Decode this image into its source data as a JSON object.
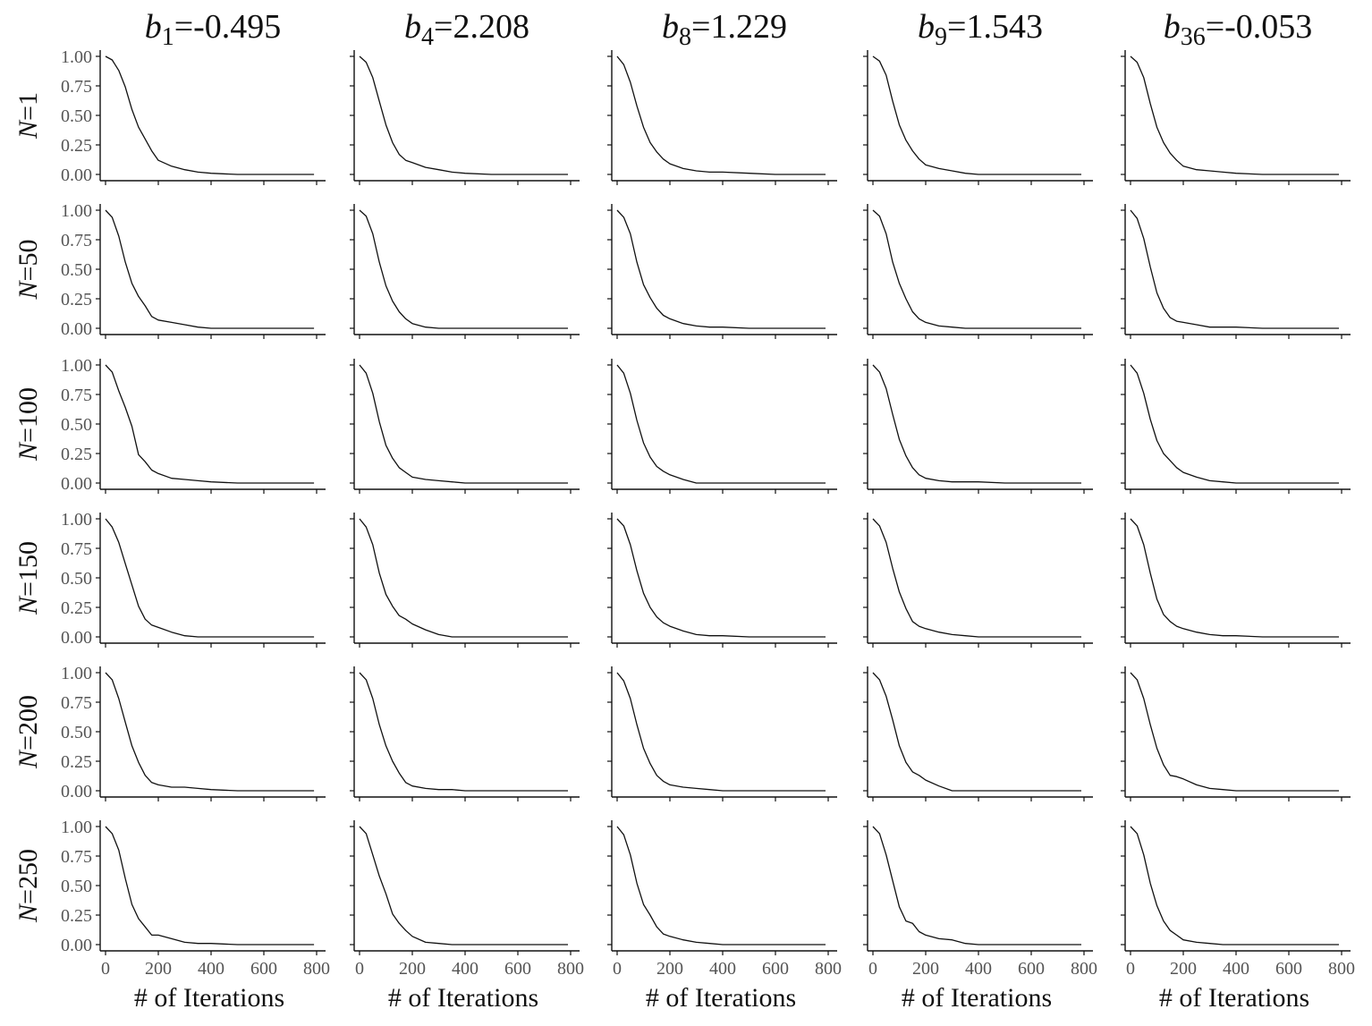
{
  "chart_data": {
    "type": "line",
    "layout": "small-multiples-grid",
    "xlabel": "# of Iterations",
    "xlim": [
      0,
      800
    ],
    "ylim": [
      0,
      1
    ],
    "x_ticks": [
      "0",
      "200",
      "400",
      "600",
      "800"
    ],
    "y_ticks": [
      "0.00",
      "0.25",
      "0.50",
      "0.75",
      "1.00"
    ],
    "x_tick_values": [
      0,
      200,
      400,
      600,
      800
    ],
    "y_tick_values": [
      0,
      0.25,
      0.5,
      0.75,
      1
    ],
    "grid": false,
    "legend": "none",
    "columns": [
      {
        "symbol": "b",
        "subscript": "1",
        "value_text": "=-0.495"
      },
      {
        "symbol": "b",
        "subscript": "4",
        "value_text": "=2.208"
      },
      {
        "symbol": "b",
        "subscript": "8",
        "value_text": "=1.229"
      },
      {
        "symbol": "b",
        "subscript": "9",
        "value_text": "=1.543"
      },
      {
        "symbol": "b",
        "subscript": "36",
        "value_text": "=-0.053"
      }
    ],
    "rows": [
      {
        "symbol": "N",
        "value_text": "=1"
      },
      {
        "symbol": "N",
        "value_text": "=50"
      },
      {
        "symbol": "N",
        "value_text": "=100"
      },
      {
        "symbol": "N",
        "value_text": "=150"
      },
      {
        "symbol": "N",
        "value_text": "=200"
      },
      {
        "symbol": "N",
        "value_text": "=250"
      }
    ],
    "x": [
      0,
      25,
      50,
      75,
      100,
      125,
      150,
      175,
      200,
      250,
      300,
      350,
      400,
      500,
      600,
      700,
      790
    ],
    "panels": [
      [
        [
          1.0,
          0.97,
          0.88,
          0.74,
          0.55,
          0.4,
          0.3,
          0.2,
          0.12,
          0.07,
          0.04,
          0.02,
          0.01,
          0.0,
          0.0,
          0.0,
          0.0
        ],
        [
          1.0,
          0.95,
          0.82,
          0.62,
          0.42,
          0.27,
          0.17,
          0.12,
          0.1,
          0.06,
          0.04,
          0.02,
          0.01,
          0.0,
          0.0,
          0.0,
          0.0
        ],
        [
          1.0,
          0.93,
          0.78,
          0.58,
          0.4,
          0.27,
          0.19,
          0.13,
          0.09,
          0.05,
          0.03,
          0.02,
          0.02,
          0.01,
          0.0,
          0.0,
          0.0
        ],
        [
          1.0,
          0.96,
          0.84,
          0.62,
          0.42,
          0.29,
          0.2,
          0.13,
          0.08,
          0.05,
          0.03,
          0.01,
          0.0,
          0.0,
          0.0,
          0.0,
          0.0
        ],
        [
          1.0,
          0.95,
          0.82,
          0.6,
          0.4,
          0.27,
          0.18,
          0.12,
          0.07,
          0.04,
          0.03,
          0.02,
          0.01,
          0.0,
          0.0,
          0.0,
          0.0
        ]
      ],
      [
        [
          1.0,
          0.94,
          0.78,
          0.56,
          0.38,
          0.27,
          0.19,
          0.1,
          0.07,
          0.05,
          0.03,
          0.01,
          0.0,
          0.0,
          0.0,
          0.0,
          0.0
        ],
        [
          1.0,
          0.95,
          0.8,
          0.56,
          0.36,
          0.23,
          0.14,
          0.08,
          0.04,
          0.01,
          0.0,
          0.0,
          0.0,
          0.0,
          0.0,
          0.0,
          0.0
        ],
        [
          1.0,
          0.94,
          0.8,
          0.56,
          0.37,
          0.26,
          0.17,
          0.11,
          0.08,
          0.04,
          0.02,
          0.01,
          0.01,
          0.0,
          0.0,
          0.0,
          0.0
        ],
        [
          1.0,
          0.95,
          0.8,
          0.56,
          0.38,
          0.25,
          0.14,
          0.08,
          0.05,
          0.02,
          0.01,
          0.0,
          0.0,
          0.0,
          0.0,
          0.0,
          0.0
        ],
        [
          1.0,
          0.93,
          0.76,
          0.52,
          0.3,
          0.17,
          0.09,
          0.06,
          0.05,
          0.03,
          0.01,
          0.01,
          0.01,
          0.0,
          0.0,
          0.0,
          0.0
        ]
      ],
      [
        [
          1.0,
          0.94,
          0.78,
          0.64,
          0.48,
          0.24,
          0.18,
          0.11,
          0.08,
          0.04,
          0.03,
          0.02,
          0.01,
          0.0,
          0.0,
          0.0,
          0.0
        ],
        [
          1.0,
          0.93,
          0.76,
          0.52,
          0.32,
          0.21,
          0.13,
          0.09,
          0.05,
          0.03,
          0.02,
          0.01,
          0.0,
          0.0,
          0.0,
          0.0,
          0.0
        ],
        [
          1.0,
          0.93,
          0.76,
          0.53,
          0.34,
          0.22,
          0.14,
          0.1,
          0.07,
          0.03,
          0.0,
          0.0,
          0.0,
          0.0,
          0.0,
          0.0,
          0.0
        ],
        [
          1.0,
          0.94,
          0.8,
          0.58,
          0.37,
          0.23,
          0.13,
          0.07,
          0.04,
          0.02,
          0.01,
          0.01,
          0.01,
          0.0,
          0.0,
          0.0,
          0.0
        ],
        [
          1.0,
          0.93,
          0.76,
          0.54,
          0.36,
          0.25,
          0.19,
          0.13,
          0.09,
          0.05,
          0.02,
          0.01,
          0.0,
          0.0,
          0.0,
          0.0,
          0.0
        ]
      ],
      [
        [
          1.0,
          0.93,
          0.8,
          0.62,
          0.44,
          0.26,
          0.15,
          0.1,
          0.08,
          0.04,
          0.01,
          0.0,
          0.0,
          0.0,
          0.0,
          0.0,
          0.0
        ],
        [
          1.0,
          0.93,
          0.78,
          0.54,
          0.36,
          0.26,
          0.18,
          0.15,
          0.11,
          0.06,
          0.02,
          0.0,
          0.0,
          0.0,
          0.0,
          0.0,
          0.0
        ],
        [
          1.0,
          0.94,
          0.78,
          0.56,
          0.37,
          0.25,
          0.17,
          0.12,
          0.09,
          0.05,
          0.02,
          0.01,
          0.01,
          0.0,
          0.0,
          0.0,
          0.0
        ],
        [
          1.0,
          0.94,
          0.8,
          0.58,
          0.38,
          0.24,
          0.13,
          0.09,
          0.07,
          0.04,
          0.02,
          0.01,
          0.0,
          0.0,
          0.0,
          0.0,
          0.0
        ],
        [
          1.0,
          0.94,
          0.78,
          0.54,
          0.32,
          0.19,
          0.13,
          0.09,
          0.07,
          0.04,
          0.02,
          0.01,
          0.01,
          0.0,
          0.0,
          0.0,
          0.0
        ]
      ],
      [
        [
          1.0,
          0.94,
          0.78,
          0.58,
          0.38,
          0.24,
          0.13,
          0.07,
          0.05,
          0.03,
          0.03,
          0.02,
          0.01,
          0.0,
          0.0,
          0.0,
          0.0
        ],
        [
          1.0,
          0.94,
          0.78,
          0.56,
          0.38,
          0.25,
          0.15,
          0.07,
          0.04,
          0.02,
          0.01,
          0.01,
          0.0,
          0.0,
          0.0,
          0.0,
          0.0
        ],
        [
          1.0,
          0.93,
          0.78,
          0.56,
          0.36,
          0.23,
          0.13,
          0.08,
          0.05,
          0.03,
          0.02,
          0.01,
          0.0,
          0.0,
          0.0,
          0.0,
          0.0
        ],
        [
          1.0,
          0.94,
          0.8,
          0.6,
          0.38,
          0.24,
          0.16,
          0.13,
          0.09,
          0.04,
          0.0,
          0.0,
          0.0,
          0.0,
          0.0,
          0.0,
          0.0
        ],
        [
          1.0,
          0.94,
          0.78,
          0.56,
          0.36,
          0.22,
          0.13,
          0.12,
          0.1,
          0.05,
          0.02,
          0.01,
          0.0,
          0.0,
          0.0,
          0.0,
          0.0
        ]
      ],
      [
        [
          1.0,
          0.94,
          0.8,
          0.56,
          0.34,
          0.22,
          0.15,
          0.08,
          0.08,
          0.05,
          0.02,
          0.01,
          0.01,
          0.0,
          0.0,
          0.0,
          0.0
        ],
        [
          1.0,
          0.94,
          0.76,
          0.58,
          0.43,
          0.26,
          0.18,
          0.12,
          0.07,
          0.02,
          0.01,
          0.0,
          0.0,
          0.0,
          0.0,
          0.0,
          0.0
        ],
        [
          1.0,
          0.93,
          0.76,
          0.52,
          0.34,
          0.25,
          0.15,
          0.09,
          0.07,
          0.04,
          0.02,
          0.01,
          0.0,
          0.0,
          0.0,
          0.0,
          0.0
        ],
        [
          1.0,
          0.94,
          0.76,
          0.54,
          0.32,
          0.2,
          0.18,
          0.11,
          0.08,
          0.05,
          0.04,
          0.01,
          0.0,
          0.0,
          0.0,
          0.0,
          0.0
        ],
        [
          1.0,
          0.94,
          0.76,
          0.52,
          0.33,
          0.2,
          0.12,
          0.08,
          0.04,
          0.02,
          0.01,
          0.0,
          0.0,
          0.0,
          0.0,
          0.0,
          0.0
        ]
      ]
    ]
  }
}
